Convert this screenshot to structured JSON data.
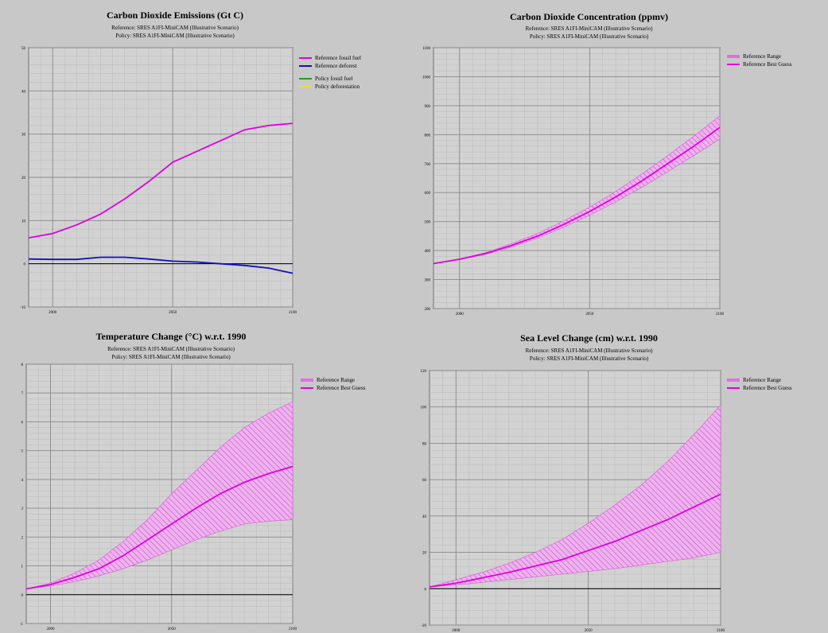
{
  "chart_data": [
    {
      "type": "line",
      "title": "Carbon Dioxide Emissions (Gt C)",
      "subtitle_reference": "Reference: SRES A1FI-MiniCAM (Illustrative Scenario)",
      "subtitle_policy": "Policy: SRES A1FI-MiniCAM (Illustrative Scenario)",
      "xlim": [
        1990,
        2100
      ],
      "ylim": [
        -10,
        50
      ],
      "xticks": [
        2000,
        2050,
        2100
      ],
      "yticks": [
        -10,
        0,
        10,
        20,
        30,
        40,
        50
      ],
      "grid": true,
      "legend_position": "right",
      "series": [
        {
          "name": "Reference fossil fuel",
          "color": "#e000e0",
          "x": [
            1990,
            2000,
            2010,
            2020,
            2030,
            2040,
            2050,
            2060,
            2070,
            2080,
            2090,
            2100
          ],
          "y": [
            6.0,
            7.0,
            9.0,
            11.5,
            15.0,
            19.0,
            23.5,
            26.0,
            28.5,
            31.0,
            32.0,
            32.5
          ]
        },
        {
          "name": "Reference deforest",
          "color": "#1010c0",
          "x": [
            1990,
            2000,
            2010,
            2020,
            2030,
            2040,
            2050,
            2060,
            2070,
            2080,
            2090,
            2100
          ],
          "y": [
            1.1,
            1.0,
            1.0,
            1.5,
            1.5,
            1.1,
            0.6,
            0.4,
            0.0,
            -0.4,
            -1.0,
            -2.2
          ]
        }
      ],
      "legend": [
        {
          "label": "Reference fossil fuel",
          "color": "#e000e0",
          "kind": "line"
        },
        {
          "label": "Reference deforest",
          "color": "#1010c0",
          "kind": "line"
        },
        {
          "label": "Policy fossil fuel",
          "color": "#20a020",
          "kind": "line"
        },
        {
          "label": "Policy deforestation",
          "color": "#e0e040",
          "kind": "line"
        }
      ]
    },
    {
      "type": "area",
      "title": "Carbon Dioxide Concentration (ppmv)",
      "subtitle_reference": "Reference: SRES A1FI-MiniCAM (Illustrative Scenario)",
      "subtitle_policy": "Policy: SRES A1FI-MiniCAM (Illustrative Scenario)",
      "xlim": [
        1990,
        2100
      ],
      "ylim": [
        200,
        1100
      ],
      "xticks": [
        2000,
        2050,
        2100
      ],
      "yticks": [
        200,
        300,
        400,
        500,
        600,
        700,
        800,
        900,
        1000,
        1100
      ],
      "grid": true,
      "legend_position": "right",
      "x": [
        1990,
        2000,
        2010,
        2020,
        2030,
        2040,
        2050,
        2060,
        2070,
        2080,
        2090,
        2100
      ],
      "best": [
        355,
        370,
        390,
        418,
        450,
        490,
        535,
        585,
        640,
        700,
        760,
        825
      ],
      "low": [
        355,
        369,
        387,
        412,
        443,
        480,
        522,
        568,
        618,
        672,
        728,
        785
      ],
      "high": [
        355,
        371,
        393,
        424,
        459,
        502,
        550,
        604,
        664,
        728,
        795,
        865
      ],
      "legend": [
        {
          "label": "Reference Range",
          "color": "#e070e0",
          "kind": "band"
        },
        {
          "label": "Reference Best Guess",
          "color": "#e000e0",
          "kind": "line"
        }
      ]
    },
    {
      "type": "area",
      "title": "Temperature Change (°C) w.r.t. 1990",
      "subtitle_reference": "Reference: SRES A1FI-MiniCAM (Illustrative Scenario)",
      "subtitle_policy": "Policy: SRES A1FI-MiniCAM (Illustrative Scenario)",
      "xlim": [
        1990,
        2100
      ],
      "ylim": [
        -1,
        8
      ],
      "xticks": [
        2000,
        2050,
        2100
      ],
      "yticks": [
        -1,
        0,
        1,
        2,
        3,
        4,
        5,
        6,
        7,
        8
      ],
      "grid": true,
      "legend_position": "right",
      "x": [
        1990,
        2000,
        2010,
        2020,
        2030,
        2040,
        2050,
        2060,
        2070,
        2080,
        2090,
        2100
      ],
      "best": [
        0.2,
        0.35,
        0.6,
        0.9,
        1.35,
        1.9,
        2.45,
        3.0,
        3.5,
        3.9,
        4.2,
        4.45
      ],
      "low": [
        0.2,
        0.3,
        0.45,
        0.65,
        0.9,
        1.2,
        1.55,
        1.9,
        2.2,
        2.45,
        2.55,
        2.6
      ],
      "high": [
        0.2,
        0.4,
        0.75,
        1.2,
        1.85,
        2.6,
        3.5,
        4.3,
        5.1,
        5.8,
        6.3,
        6.7
      ],
      "legend": [
        {
          "label": "Reference Range",
          "color": "#e070e0",
          "kind": "band"
        },
        {
          "label": "Reference Best Guess",
          "color": "#e000e0",
          "kind": "line"
        }
      ]
    },
    {
      "type": "area",
      "title": "Sea Level Change (cm) w.r.t. 1990",
      "subtitle_reference": "Reference: SRES A1FI-MiniCAM (Illustrative Scenario)",
      "subtitle_policy": "Policy: SRES A1FI-MiniCAM (Illustrative Scenario)",
      "xlim": [
        1990,
        2100
      ],
      "ylim": [
        -20,
        120
      ],
      "xticks": [
        2000,
        2050,
        2100
      ],
      "yticks": [
        -20,
        0,
        20,
        40,
        60,
        80,
        100,
        120
      ],
      "grid": true,
      "legend_position": "right",
      "x": [
        1990,
        2000,
        2010,
        2020,
        2030,
        2040,
        2050,
        2060,
        2070,
        2080,
        2090,
        2100
      ],
      "best": [
        1,
        3,
        6,
        9,
        12.5,
        16,
        21,
        26,
        32,
        38,
        45,
        52
      ],
      "low": [
        1,
        2,
        3.5,
        5,
        6.5,
        8,
        9.5,
        11,
        13,
        15,
        17,
        20
      ],
      "high": [
        1,
        5,
        9,
        14,
        20,
        27,
        36,
        46,
        57,
        70,
        85,
        101
      ],
      "legend": [
        {
          "label": "Reference Range",
          "color": "#e070e0",
          "kind": "band"
        },
        {
          "label": "Reference Best Guess",
          "color": "#e000e0",
          "kind": "line"
        }
      ]
    }
  ]
}
